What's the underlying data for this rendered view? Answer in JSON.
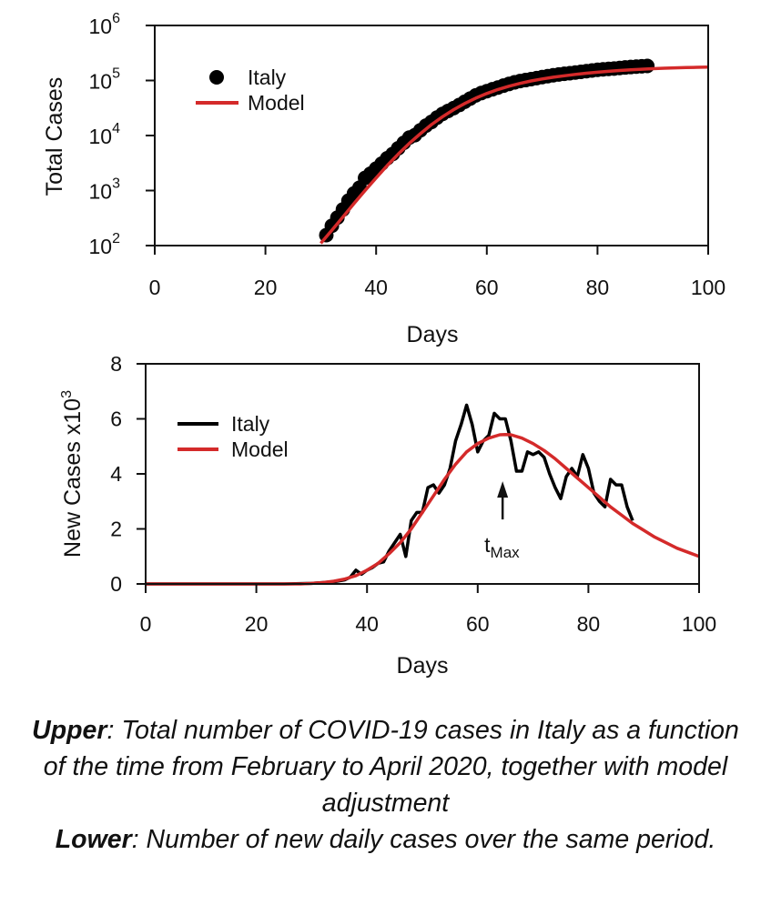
{
  "caption": {
    "upper_lead": "Upper",
    "upper_text": ": Total number of COVID-19 cases in Italy as a function of the time from February to April 2020, together with model adjustment",
    "lower_lead": "Lower",
    "lower_text": ": Number of new daily cases over the same period."
  },
  "colors": {
    "data": "#000000",
    "model": "#d42a2a",
    "axis": "#111111"
  },
  "chart_data": [
    {
      "type": "scatter",
      "xlabel": "Days",
      "ylabel": "Total Cases",
      "xlim": [
        0,
        100
      ],
      "ylim": [
        100,
        1000000
      ],
      "yscale": "log",
      "x_ticks": [
        "0",
        "20",
        "40",
        "60",
        "80",
        "100"
      ],
      "y_ticks": [
        {
          "base": "10",
          "exp": "2"
        },
        {
          "base": "10",
          "exp": "3"
        },
        {
          "base": "10",
          "exp": "4"
        },
        {
          "base": "10",
          "exp": "5"
        },
        {
          "base": "10",
          "exp": "6"
        }
      ],
      "legend": {
        "placement": "top-left"
      },
      "series": [
        {
          "name": "Italy",
          "kind": "points",
          "x": [
            31,
            32,
            33,
            34,
            35,
            36,
            37,
            38,
            39,
            40,
            41,
            42,
            43,
            44,
            45,
            46,
            47,
            48,
            49,
            50,
            51,
            52,
            53,
            54,
            55,
            56,
            57,
            58,
            59,
            60,
            61,
            62,
            63,
            64,
            65,
            66,
            67,
            68,
            69,
            70,
            71,
            72,
            73,
            74,
            75,
            76,
            77,
            78,
            79,
            80,
            81,
            82,
            83,
            84,
            85,
            86,
            87,
            88,
            89
          ],
          "y": [
            155,
            229,
            322,
            453,
            655,
            888,
            1128,
            1694,
            2036,
            2502,
            3089,
            3858,
            4636,
            5883,
            7375,
            9172,
            10149,
            12462,
            15113,
            17660,
            21157,
            24747,
            27980,
            31506,
            35713,
            41035,
            47021,
            53578,
            59138,
            63927,
            69176,
            74386,
            80539,
            86498,
            92472,
            97689,
            101739,
            105792,
            110574,
            115242,
            119827,
            124632,
            128948,
            132547,
            135586,
            139422,
            143626,
            147577,
            152271,
            156363,
            159516,
            162488,
            165155,
            168941,
            172434,
            175925,
            178972,
            181228,
            183957
          ]
        },
        {
          "name": "Model",
          "kind": "line",
          "x": [
            30,
            32,
            34,
            36,
            38,
            40,
            42,
            44,
            46,
            48,
            50,
            52,
            54,
            56,
            58,
            60,
            62,
            64,
            66,
            68,
            70,
            72,
            74,
            76,
            78,
            80,
            82,
            84,
            86,
            88,
            90,
            92,
            94,
            96,
            98,
            100
          ],
          "y": [
            110,
            190,
            330,
            580,
            1000,
            1700,
            2850,
            4600,
            7200,
            10800,
            15800,
            22000,
            29500,
            38200,
            47800,
            58000,
            68500,
            78800,
            88700,
            98000,
            106500,
            114500,
            122000,
            129000,
            135500,
            141500,
            147000,
            152000,
            156500,
            160500,
            164000,
            167000,
            169500,
            171500,
            173500,
            175000
          ]
        }
      ]
    },
    {
      "type": "line",
      "xlabel": "Days",
      "ylabel": "New Cases x10",
      "ylabel_exp": "3",
      "xlim": [
        0,
        100
      ],
      "ylim": [
        0,
        8
      ],
      "x_ticks": [
        "0",
        "20",
        "40",
        "60",
        "80",
        "100"
      ],
      "y_ticks": [
        "0",
        "2",
        "4",
        "6",
        "8"
      ],
      "legend": {
        "placement": "top-left"
      },
      "annotation": {
        "text": "t",
        "sub": "Max",
        "x": 64.5,
        "y": 3.6
      },
      "series": [
        {
          "name": "Italy",
          "x": [
            0,
            25,
            30,
            32,
            34,
            36,
            37,
            38,
            39,
            40,
            41,
            42,
            43,
            44,
            45,
            46,
            47,
            48,
            49,
            50,
            51,
            52,
            53,
            54,
            55,
            56,
            57,
            58,
            59,
            60,
            61,
            62,
            63,
            64,
            65,
            66,
            67,
            68,
            69,
            70,
            71,
            72,
            73,
            74,
            75,
            76,
            77,
            78,
            79,
            80,
            81,
            82,
            83,
            84,
            85,
            86,
            87,
            88
          ],
          "y": [
            0,
            0,
            0.02,
            0.05,
            0.08,
            0.15,
            0.25,
            0.5,
            0.35,
            0.5,
            0.6,
            0.75,
            0.8,
            1.2,
            1.5,
            1.8,
            1.0,
            2.3,
            2.6,
            2.6,
            3.5,
            3.6,
            3.3,
            3.6,
            4.2,
            5.2,
            5.8,
            6.5,
            5.8,
            4.8,
            5.2,
            5.4,
            6.2,
            6.0,
            6.0,
            5.2,
            4.1,
            4.1,
            4.8,
            4.7,
            4.8,
            4.6,
            4.0,
            3.5,
            3.1,
            3.9,
            4.2,
            3.9,
            4.7,
            4.2,
            3.3,
            3.0,
            2.8,
            3.8,
            3.6,
            3.6,
            2.8,
            2.3
          ]
        },
        {
          "name": "Model",
          "x": [
            0,
            5,
            10,
            15,
            20,
            25,
            28,
            30,
            32,
            34,
            36,
            38,
            40,
            42,
            44,
            46,
            48,
            50,
            52,
            54,
            56,
            58,
            60,
            62,
            64,
            65,
            66,
            68,
            70,
            72,
            74,
            76,
            78,
            80,
            82,
            84,
            86,
            88,
            90,
            92,
            94,
            96,
            98,
            100
          ],
          "y": [
            0,
            0,
            0,
            0,
            0,
            0,
            0,
            0.02,
            0.05,
            0.1,
            0.18,
            0.3,
            0.5,
            0.75,
            1.1,
            1.5,
            2.0,
            2.6,
            3.2,
            3.8,
            4.35,
            4.8,
            5.1,
            5.3,
            5.42,
            5.43,
            5.42,
            5.3,
            5.1,
            4.85,
            4.55,
            4.2,
            3.85,
            3.5,
            3.15,
            2.8,
            2.5,
            2.2,
            1.95,
            1.7,
            1.5,
            1.3,
            1.15,
            1.0
          ]
        }
      ]
    }
  ]
}
